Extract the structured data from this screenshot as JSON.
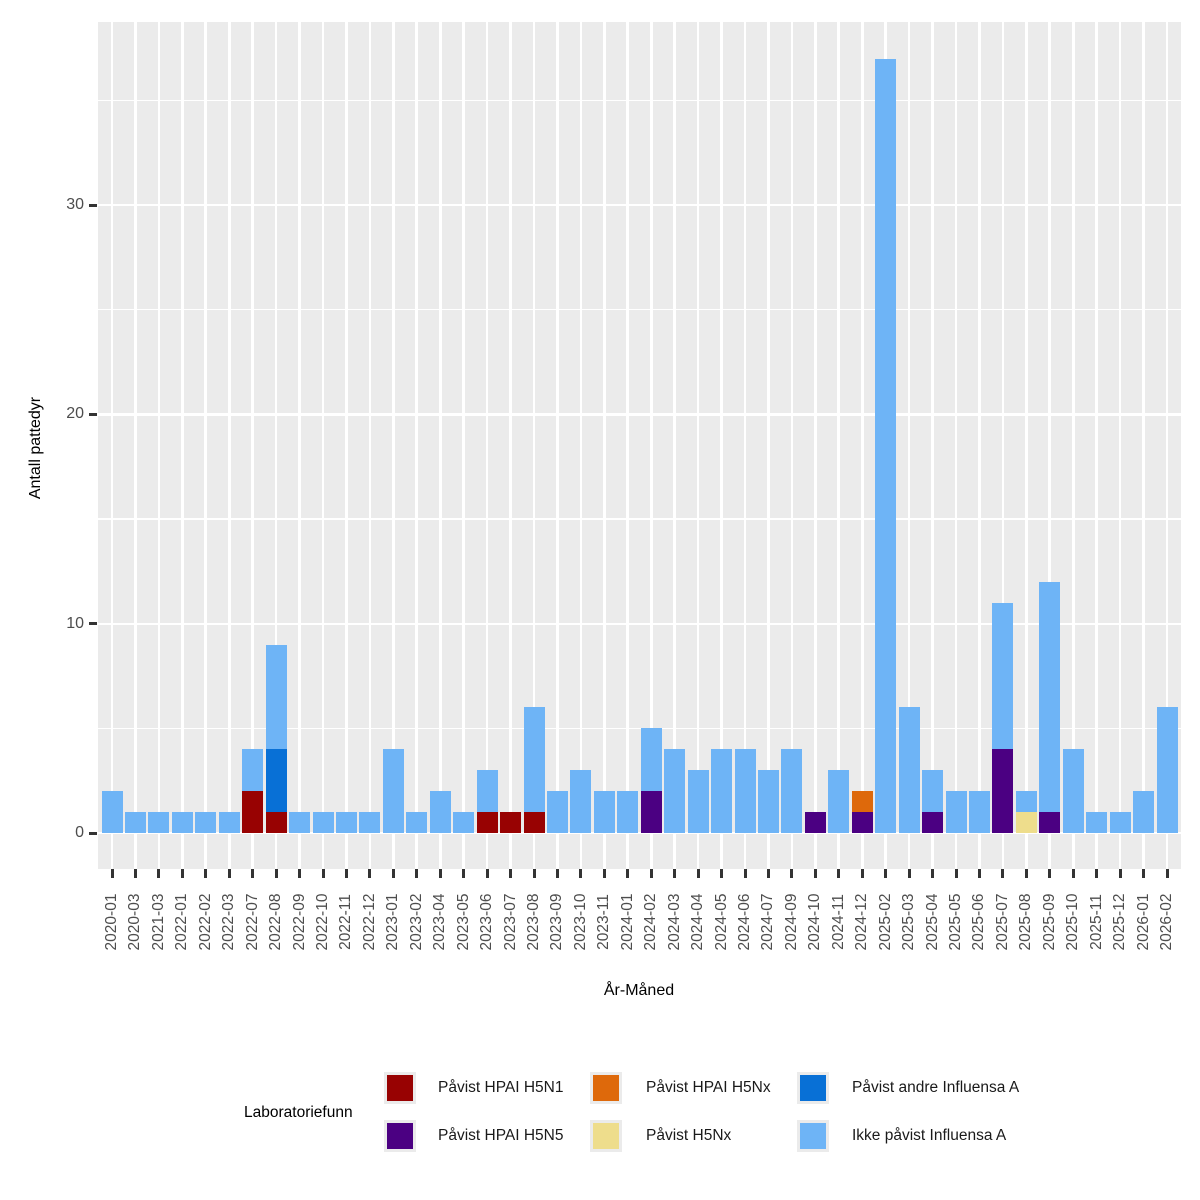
{
  "chart_data": {
    "type": "bar",
    "stacked": true,
    "title": "",
    "xlabel": "År-Måned",
    "ylabel": "Antall pattedyr",
    "yticks_major": [
      0,
      10,
      20,
      30
    ],
    "yticks_minor": [
      5,
      15,
      25,
      35
    ],
    "ylim": [
      0,
      37
    ],
    "grid": "on",
    "legend_position": "bottom",
    "panel_bg": "#EBEBEB",
    "grid_color": "#FFFFFF",
    "axis_text_color": "#4D4D4D",
    "stack_order": [
      "h5n1",
      "h5n5",
      "hpai_h5nx",
      "h5nx",
      "andre",
      "ikke"
    ],
    "series_colors": {
      "h5n1": "#980202",
      "h5n5": "#4B0082",
      "hpai_h5nx": "#DE690B",
      "h5nx": "#EEDD8C",
      "andre": "#0870D6",
      "ikke": "#6EB4F6"
    },
    "bars": [
      {
        "month": "2020-01",
        "segments": {
          "ikke": 2
        }
      },
      {
        "month": "2020-03",
        "segments": {
          "ikke": 1
        }
      },
      {
        "month": "2021-03",
        "segments": {
          "ikke": 1
        }
      },
      {
        "month": "2022-01",
        "segments": {
          "ikke": 1
        }
      },
      {
        "month": "2022-02",
        "segments": {
          "ikke": 1
        }
      },
      {
        "month": "2022-03",
        "segments": {
          "ikke": 1
        }
      },
      {
        "month": "2022-07",
        "segments": {
          "h5n1": 2,
          "ikke": 2
        }
      },
      {
        "month": "2022-08",
        "segments": {
          "h5n1": 1,
          "andre": 3,
          "ikke": 5
        }
      },
      {
        "month": "2022-09",
        "segments": {
          "ikke": 1
        }
      },
      {
        "month": "2022-10",
        "segments": {
          "ikke": 1
        }
      },
      {
        "month": "2022-11",
        "segments": {
          "ikke": 1
        }
      },
      {
        "month": "2022-12",
        "segments": {
          "ikke": 1
        }
      },
      {
        "month": "2023-01",
        "segments": {
          "ikke": 4
        }
      },
      {
        "month": "2023-02",
        "segments": {
          "ikke": 1
        }
      },
      {
        "month": "2023-04",
        "segments": {
          "ikke": 2
        }
      },
      {
        "month": "2023-05",
        "segments": {
          "ikke": 1
        }
      },
      {
        "month": "2023-06",
        "segments": {
          "h5n1": 1,
          "ikke": 2
        }
      },
      {
        "month": "2023-07",
        "segments": {
          "h5n1": 1
        }
      },
      {
        "month": "2023-08",
        "segments": {
          "h5n1": 1,
          "ikke": 5
        }
      },
      {
        "month": "2023-09",
        "segments": {
          "ikke": 2
        }
      },
      {
        "month": "2023-10",
        "segments": {
          "ikke": 3
        }
      },
      {
        "month": "2023-11",
        "segments": {
          "ikke": 2
        }
      },
      {
        "month": "2024-01",
        "segments": {
          "ikke": 2
        }
      },
      {
        "month": "2024-02",
        "segments": {
          "h5n5": 2,
          "ikke": 3
        }
      },
      {
        "month": "2024-03",
        "segments": {
          "ikke": 4
        }
      },
      {
        "month": "2024-04",
        "segments": {
          "ikke": 3
        }
      },
      {
        "month": "2024-05",
        "segments": {
          "ikke": 4
        }
      },
      {
        "month": "2024-06",
        "segments": {
          "ikke": 4
        }
      },
      {
        "month": "2024-07",
        "segments": {
          "ikke": 3
        }
      },
      {
        "month": "2024-09",
        "segments": {
          "ikke": 4
        }
      },
      {
        "month": "2024-10",
        "segments": {
          "h5n5": 1
        }
      },
      {
        "month": "2024-11",
        "segments": {
          "ikke": 3
        }
      },
      {
        "month": "2024-12",
        "segments": {
          "h5n5": 1,
          "hpai_h5nx": 1
        }
      },
      {
        "month": "2025-02",
        "segments": {
          "ikke": 37
        }
      },
      {
        "month": "2025-03",
        "segments": {
          "ikke": 6
        }
      },
      {
        "month": "2025-04",
        "segments": {
          "h5n5": 1,
          "ikke": 2
        }
      },
      {
        "month": "2025-05",
        "segments": {
          "ikke": 2
        }
      },
      {
        "month": "2025-06",
        "segments": {
          "ikke": 2
        }
      },
      {
        "month": "2025-07",
        "segments": {
          "h5n5": 4,
          "ikke": 7
        }
      },
      {
        "month": "2025-08",
        "segments": {
          "h5nx": 1,
          "ikke": 1
        }
      },
      {
        "month": "2025-09",
        "segments": {
          "h5n5": 1,
          "ikke": 11
        }
      },
      {
        "month": "2025-10",
        "segments": {
          "ikke": 4
        }
      },
      {
        "month": "2025-11",
        "segments": {
          "ikke": 1
        }
      },
      {
        "month": "2025-12",
        "segments": {
          "ikke": 1
        }
      },
      {
        "month": "2026-01",
        "segments": {
          "ikke": 2
        }
      },
      {
        "month": "2026-02",
        "segments": {
          "ikke": 6
        }
      }
    ]
  },
  "legend": {
    "title": "Laboratoriefunn",
    "items": [
      {
        "key": "h5n1",
        "label": "Påvist HPAI H5N1"
      },
      {
        "key": "h5n5",
        "label": "Påvist HPAI H5N5"
      },
      {
        "key": "hpai_h5nx",
        "label": "Påvist HPAI H5Nx"
      },
      {
        "key": "h5nx",
        "label": "Påvist H5Nx"
      },
      {
        "key": "andre",
        "label": "Påvist andre Influensa A"
      },
      {
        "key": "ikke",
        "label": "Ikke påvist Influensa A"
      }
    ]
  }
}
